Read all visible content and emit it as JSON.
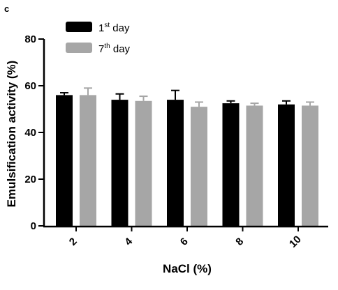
{
  "panel_label": "c",
  "chart_data": {
    "type": "bar",
    "xlabel": "NaCl (%)",
    "ylabel": "Emulsification activity (%)",
    "ylim": [
      0,
      80
    ],
    "yticks": [
      0,
      20,
      40,
      60,
      80
    ],
    "categories": [
      "2",
      "4",
      "6",
      "8",
      "10"
    ],
    "grid": false,
    "legend_position": "top-left",
    "series": [
      {
        "name_base": "1",
        "name_sup": "st",
        "name_rest": " day",
        "color": "#000000",
        "values": [
          56,
          54,
          54,
          52.5,
          52
        ],
        "errors": [
          1,
          2.5,
          4,
          1,
          1.5
        ]
      },
      {
        "name_base": "7",
        "name_sup": "th",
        "name_rest": " day",
        "color": "#a6a6a6",
        "values": [
          56,
          53.5,
          51,
          51.5,
          51.5
        ],
        "errors": [
          3,
          2,
          2,
          1,
          1.5
        ]
      }
    ]
  }
}
